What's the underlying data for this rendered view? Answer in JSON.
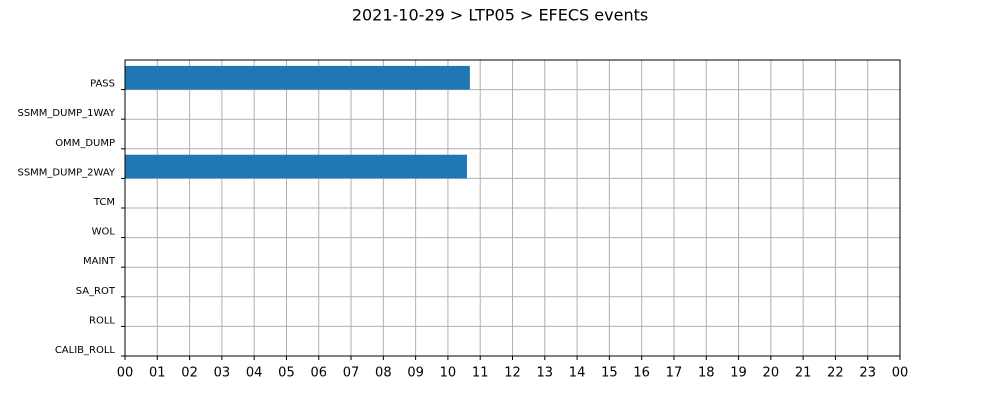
{
  "chart_data": {
    "type": "bar",
    "orientation": "horizontal",
    "title": "2021-10-29 > LTP05 > EFECS events",
    "categories": [
      "PASS",
      "SSMM_DUMP_1WAY",
      "OMM_DUMP",
      "SSMM_DUMP_2WAY",
      "TCM",
      "WOL",
      "MAINT",
      "SA_ROT",
      "ROLL",
      "CALIB_ROLL"
    ],
    "values": [
      10.68,
      null,
      null,
      10.59,
      null,
      null,
      null,
      null,
      null,
      null
    ],
    "color": "#1f77b4",
    "xlim": [
      0,
      24
    ],
    "xticks": [
      {
        "value": 0,
        "label": "00"
      },
      {
        "value": 1,
        "label": "01"
      },
      {
        "value": 2,
        "label": "02"
      },
      {
        "value": 3,
        "label": "03"
      },
      {
        "value": 4,
        "label": "04"
      },
      {
        "value": 5,
        "label": "05"
      },
      {
        "value": 6,
        "label": "06"
      },
      {
        "value": 7,
        "label": "07"
      },
      {
        "value": 8,
        "label": "08"
      },
      {
        "value": 9,
        "label": "09"
      },
      {
        "value": 10,
        "label": "10"
      },
      {
        "value": 11,
        "label": "11"
      },
      {
        "value": 12,
        "label": "12"
      },
      {
        "value": 13,
        "label": "13"
      },
      {
        "value": 14,
        "label": "14"
      },
      {
        "value": 15,
        "label": "15"
      },
      {
        "value": 16,
        "label": "16"
      },
      {
        "value": 17,
        "label": "17"
      },
      {
        "value": 18,
        "label": "18"
      },
      {
        "value": 19,
        "label": "19"
      },
      {
        "value": 20,
        "label": "20"
      },
      {
        "value": 21,
        "label": "21"
      },
      {
        "value": 22,
        "label": "22"
      },
      {
        "value": 23,
        "label": "23"
      },
      {
        "value": 24,
        "label": "00"
      }
    ],
    "grid": true
  }
}
